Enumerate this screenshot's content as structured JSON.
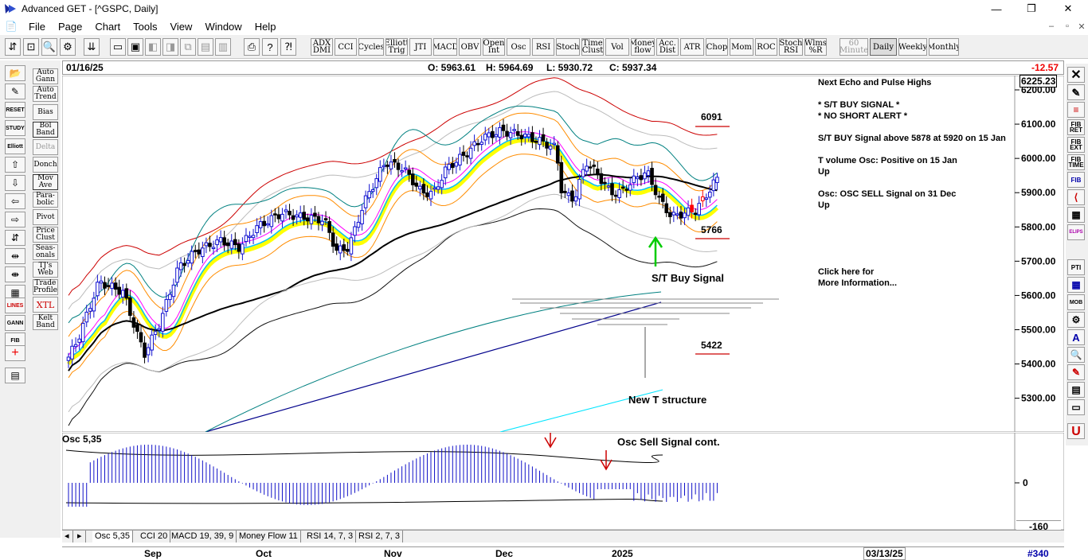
{
  "window": {
    "title": "Advanced GET - [^GSPC, Daily]",
    "min": "—",
    "max": "❐",
    "close": "✕"
  },
  "menu": [
    "File",
    "Page",
    "Chart",
    "Tools",
    "View",
    "Window",
    "Help"
  ],
  "mdi_controls": [
    "–",
    "▫",
    "✕"
  ],
  "toolbar_buttons": [
    {
      "label": "ADX DMI",
      "state": "normal"
    },
    {
      "label": "CCI",
      "state": "normal"
    },
    {
      "label": "Cycles",
      "state": "normal"
    },
    {
      "label": "Elliott Trig",
      "state": "normal"
    },
    {
      "label": "JTI",
      "state": "normal"
    },
    {
      "label": "MACD",
      "state": "normal"
    },
    {
      "label": "OBV",
      "state": "normal"
    },
    {
      "label": "Open Int",
      "state": "normal"
    },
    {
      "label": "Osc",
      "state": "normal"
    },
    {
      "label": "RSI",
      "state": "normal"
    },
    {
      "label": "Stoch",
      "state": "normal"
    },
    {
      "label": "Time Clust",
      "state": "normal"
    },
    {
      "label": "Vol",
      "state": "normal"
    },
    {
      "label": "Money flow",
      "state": "normal"
    },
    {
      "label": "Acc. Dist",
      "state": "normal"
    },
    {
      "label": "ATR",
      "state": "normal"
    },
    {
      "label": "Chop",
      "state": "normal"
    },
    {
      "label": "Mom",
      "state": "normal"
    },
    {
      "label": "ROC",
      "state": "normal"
    },
    {
      "label": "Stoch RSI",
      "state": "normal"
    },
    {
      "label": "Wlms %R",
      "state": "normal"
    }
  ],
  "period_buttons": [
    {
      "label": "60 Minute",
      "state": "disabled"
    },
    {
      "label": "Daily",
      "state": "active"
    },
    {
      "label": "Weekly",
      "state": "normal"
    },
    {
      "label": "Monthly",
      "state": "normal"
    }
  ],
  "left_tools": [
    {
      "label": "Auto Gann"
    },
    {
      "label": "Auto Trend"
    },
    {
      "label": "Bias"
    },
    {
      "label": "Bol Band"
    },
    {
      "label": "Delta"
    },
    {
      "label": "Donch"
    },
    {
      "label": "Mov Ave"
    },
    {
      "label": "Para- bolic"
    },
    {
      "label": "Pivot"
    },
    {
      "label": "Price Clust"
    },
    {
      "label": "Seas- onals"
    },
    {
      "label": "TJ's Web"
    },
    {
      "label": "Trade Profile"
    },
    {
      "label": "XTL"
    },
    {
      "label": "Kelt Band"
    }
  ],
  "left_icon_labels": [
    "RESET",
    "STUDY",
    "Elliott",
    "LINES",
    "GANN",
    "FIB"
  ],
  "right_tools": [
    "FIB RET",
    "FIB EXT",
    "FIB TIME",
    "FIB",
    "ELIPS",
    "PTI",
    "MOB",
    "A"
  ],
  "chart_header": {
    "date": "01/16/25",
    "open": "O: 5963.61",
    "high": "H: 5964.69",
    "low": "L: 5930.72",
    "close": "C: 5937.34",
    "change": "-12.57"
  },
  "price_badge": "6225.23",
  "price_ticks": [
    "6200.00",
    "6100.00",
    "6000.00",
    "5900.00",
    "5800.00",
    "5700.00",
    "5600.00",
    "5500.00",
    "5400.00",
    "5300.00"
  ],
  "annotations": {
    "target_6091": "6091",
    "target_5766": "5766",
    "target_5422": "5422",
    "buy_signal": "S/T Buy Signal",
    "new_t_structure": "New T structure",
    "osc_label": "Osc 5,35",
    "osc_sell": "Osc Sell Signal cont."
  },
  "info_panel": [
    "Next Echo and Pulse Highs",
    "* S/T BUY SIGNAL *",
    "* NO SHORT ALERT *",
    "S/T BUY Signal above 5878 at 5920 on 15 Jan",
    "T volume Osc: Positive on 15 Jan",
    "Up",
    "Osc: OSC SELL Signal on 31 Dec",
    "Up",
    "Click here for",
    "More Information..."
  ],
  "osc_ticks": [
    "0",
    "-160"
  ],
  "osc_tabs": [
    "Osc 5,35",
    "CCI 20",
    "MACD 19, 39, 9",
    "Money Flow 11",
    "RSI 14, 7, 3",
    "RSI 2, 7, 3"
  ],
  "x_axis": {
    "months": [
      "Sep",
      "Oct",
      "Nov",
      "Dec",
      "2025"
    ],
    "future_date": "03/13/25",
    "bar_count": "#340"
  },
  "colors": {
    "up": "#1010d0",
    "down": "#000000",
    "red_down": "#ff0000",
    "ma_black": "#000000",
    "bands": [
      "#ff8c00",
      "#ffff00",
      "#00c0ff",
      "#ff00ff",
      "#cc0000",
      "#008080"
    ]
  }
}
